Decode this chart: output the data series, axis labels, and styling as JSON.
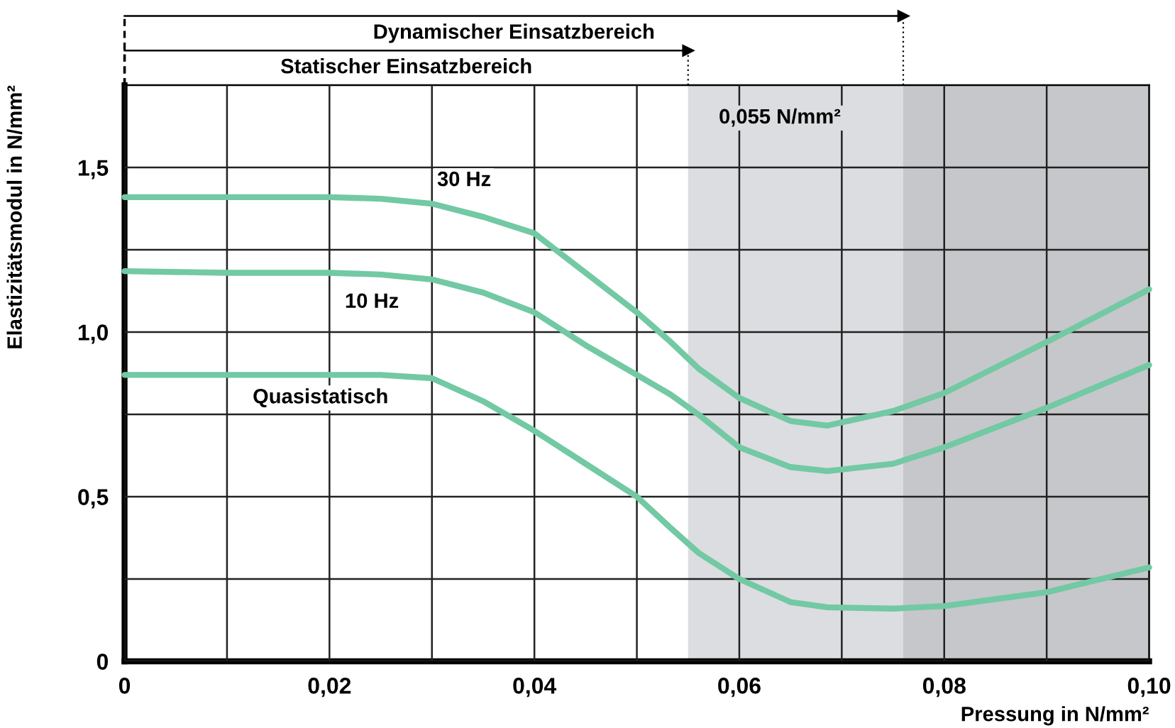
{
  "chart_data": {
    "type": "line",
    "xlabel": "Pressung in N/mm²",
    "ylabel": "Elastizitätsmodul in N/mm²",
    "xlim": [
      0,
      0.1
    ],
    "ylim": [
      0,
      1.75
    ],
    "xticks": [
      {
        "value": 0,
        "label": "0"
      },
      {
        "value": 0.01,
        "label": null
      },
      {
        "value": 0.02,
        "label": "0,02"
      },
      {
        "value": 0.03,
        "label": null
      },
      {
        "value": 0.04,
        "label": "0,04"
      },
      {
        "value": 0.05,
        "label": null
      },
      {
        "value": 0.06,
        "label": "0,06"
      },
      {
        "value": 0.07,
        "label": null
      },
      {
        "value": 0.08,
        "label": "0,08"
      },
      {
        "value": 0.09,
        "label": null
      },
      {
        "value": 0.1,
        "label": "0,10"
      }
    ],
    "yticks": [
      {
        "value": 0,
        "label": "0"
      },
      {
        "value": 0.25,
        "label": null
      },
      {
        "value": 0.5,
        "label": "0,5"
      },
      {
        "value": 0.75,
        "label": null
      },
      {
        "value": 1.0,
        "label": "1,0"
      },
      {
        "value": 1.25,
        "label": null
      },
      {
        "value": 1.5,
        "label": "1,5"
      }
    ],
    "grid": true,
    "marker": "none",
    "line_style": "solid",
    "legend": false,
    "bands": [
      {
        "axis": "x",
        "from": 0.055,
        "to": 0.076,
        "color": "#dcdde0",
        "label": "0,055 N/mm²"
      },
      {
        "axis": "x",
        "from": 0.076,
        "to": 0.1,
        "color": "#c6c7ca"
      }
    ],
    "annotations": [
      "Dynamischer Einsatzbereich",
      "Statischer Einsatzbereich"
    ],
    "series": [
      {
        "name": "30 Hz",
        "color": "#72c9a3",
        "x": [
          0,
          0.01,
          0.02,
          0.025,
          0.03,
          0.035,
          0.04,
          0.045,
          0.05,
          0.0533,
          0.056,
          0.06,
          0.065,
          0.0686,
          0.075,
          0.08,
          0.09,
          0.1
        ],
        "values": [
          1.41,
          1.41,
          1.41,
          1.405,
          1.39,
          1.35,
          1.3,
          1.18,
          1.06,
          0.97,
          0.89,
          0.8,
          0.73,
          0.716,
          0.76,
          0.815,
          0.97,
          1.13
        ]
      },
      {
        "name": "10 Hz",
        "color": "#72c9a3",
        "x": [
          0,
          0.01,
          0.02,
          0.025,
          0.03,
          0.035,
          0.04,
          0.045,
          0.05,
          0.0533,
          0.056,
          0.06,
          0.065,
          0.0686,
          0.075,
          0.08,
          0.09,
          0.1
        ],
        "values": [
          1.185,
          1.18,
          1.18,
          1.175,
          1.16,
          1.12,
          1.06,
          0.96,
          0.87,
          0.81,
          0.75,
          0.65,
          0.59,
          0.578,
          0.6,
          0.65,
          0.77,
          0.9
        ]
      },
      {
        "name": "Quasistatisch",
        "color": "#72c9a3",
        "x": [
          0,
          0.01,
          0.02,
          0.025,
          0.03,
          0.035,
          0.04,
          0.045,
          0.05,
          0.0533,
          0.056,
          0.06,
          0.065,
          0.0686,
          0.075,
          0.08,
          0.09,
          0.1
        ],
        "values": [
          0.87,
          0.87,
          0.87,
          0.87,
          0.86,
          0.79,
          0.7,
          0.6,
          0.5,
          0.405,
          0.33,
          0.25,
          0.18,
          0.164,
          0.16,
          0.168,
          0.21,
          0.285
        ]
      }
    ]
  }
}
